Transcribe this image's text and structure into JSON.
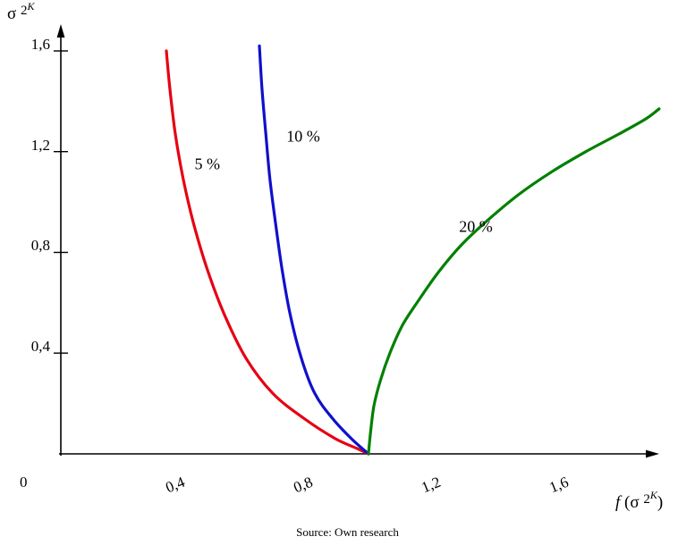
{
  "chart_data": {
    "type": "line",
    "title": "",
    "xlabel": "f(σ2^K)",
    "ylabel": "σ2^K",
    "xlim": [
      0,
      1.95
    ],
    "ylim": [
      0,
      1.65
    ],
    "grid": false,
    "origin_label": "0",
    "x_ticks": [
      {
        "v": 0.4,
        "label": "0,4"
      },
      {
        "v": 0.8,
        "label": "0,8"
      },
      {
        "v": 1.2,
        "label": "1,2"
      },
      {
        "v": 1.6,
        "label": "1,6"
      }
    ],
    "y_ticks": [
      {
        "v": 0.4,
        "label": "0,4"
      },
      {
        "v": 0.8,
        "label": "0,8"
      },
      {
        "v": 1.2,
        "label": "1,2"
      },
      {
        "v": 1.6,
        "label": "1,6"
      }
    ],
    "series": [
      {
        "name": "5 %",
        "color": "#e60012",
        "label_at": [
          0.5,
          1.15
        ],
        "points": [
          [
            0.372,
            1.6
          ],
          [
            0.383,
            1.45
          ],
          [
            0.4,
            1.27
          ],
          [
            0.425,
            1.09
          ],
          [
            0.456,
            0.92
          ],
          [
            0.498,
            0.74
          ],
          [
            0.551,
            0.56
          ],
          [
            0.621,
            0.38
          ],
          [
            0.705,
            0.24
          ],
          [
            0.803,
            0.14
          ],
          [
            0.901,
            0.06
          ],
          [
            0.971,
            0.02
          ],
          [
            1.004,
            0.0
          ]
        ]
      },
      {
        "name": "10 %",
        "color": "#1010cc",
        "label_at": [
          0.8,
          1.26
        ],
        "points": [
          [
            0.663,
            1.62
          ],
          [
            0.671,
            1.45
          ],
          [
            0.683,
            1.27
          ],
          [
            0.696,
            1.09
          ],
          [
            0.713,
            0.92
          ],
          [
            0.733,
            0.74
          ],
          [
            0.758,
            0.56
          ],
          [
            0.794,
            0.38
          ],
          [
            0.836,
            0.24
          ],
          [
            0.892,
            0.14
          ],
          [
            0.951,
            0.06
          ],
          [
            1.004,
            0.0
          ]
        ]
      },
      {
        "name": "20 %",
        "color": "#008000",
        "label_at": [
          1.34,
          0.9
        ],
        "points": [
          [
            1.004,
            0.0
          ],
          [
            1.01,
            0.08
          ],
          [
            1.021,
            0.19
          ],
          [
            1.041,
            0.29
          ],
          [
            1.071,
            0.4
          ],
          [
            1.11,
            0.51
          ],
          [
            1.161,
            0.61
          ],
          [
            1.222,
            0.72
          ],
          [
            1.295,
            0.83
          ],
          [
            1.379,
            0.93
          ],
          [
            1.474,
            1.03
          ],
          [
            1.577,
            1.12
          ],
          [
            1.684,
            1.2
          ],
          [
            1.787,
            1.27
          ],
          [
            1.871,
            1.33
          ],
          [
            1.913,
            1.37
          ]
        ]
      }
    ]
  },
  "axes": {
    "y_label": {
      "sigma": "σ",
      "two": "2",
      "sup": "K"
    },
    "x_label": {
      "func": "f",
      "open": "(",
      "sigma": "σ",
      "two": "2",
      "sup": "K",
      "close": ")"
    }
  },
  "caption": "Source: Own research"
}
